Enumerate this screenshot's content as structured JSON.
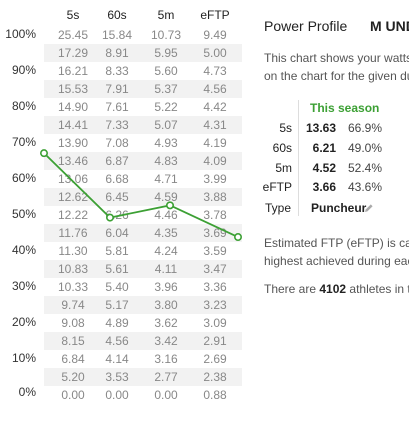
{
  "columns": [
    "5s",
    "60s",
    "5m",
    "eFTP"
  ],
  "percent_labels": [
    "100%",
    "90%",
    "80%",
    "70%",
    "60%",
    "50%",
    "40%",
    "30%",
    "20%",
    "10%",
    "0%"
  ],
  "rows": [
    [
      "25.45",
      "15.84",
      "10.73",
      "9.49"
    ],
    [
      "17.29",
      "8.91",
      "5.95",
      "5.00"
    ],
    [
      "16.21",
      "8.33",
      "5.60",
      "4.73"
    ],
    [
      "15.53",
      "7.91",
      "5.37",
      "4.56"
    ],
    [
      "14.90",
      "7.61",
      "5.22",
      "4.42"
    ],
    [
      "14.41",
      "7.33",
      "5.07",
      "4.31"
    ],
    [
      "13.90",
      "7.08",
      "4.93",
      "4.19"
    ],
    [
      "13.46",
      "6.87",
      "4.83",
      "4.09"
    ],
    [
      "13.06",
      "6.68",
      "4.71",
      "3.99"
    ],
    [
      "12.62",
      "6.45",
      "4.59",
      "3.88"
    ],
    [
      "12.22",
      "6.26",
      "4.46",
      "3.78"
    ],
    [
      "11.76",
      "6.04",
      "4.35",
      "3.69"
    ],
    [
      "11.30",
      "5.81",
      "4.24",
      "3.59"
    ],
    [
      "10.83",
      "5.61",
      "4.11",
      "3.47"
    ],
    [
      "10.33",
      "5.40",
      "3.96",
      "3.36"
    ],
    [
      "9.74",
      "5.17",
      "3.80",
      "3.23"
    ],
    [
      "9.08",
      "4.89",
      "3.62",
      "3.09"
    ],
    [
      "8.15",
      "4.56",
      "3.42",
      "2.91"
    ],
    [
      "6.84",
      "4.14",
      "3.16",
      "2.69"
    ],
    [
      "5.20",
      "3.53",
      "2.77",
      "2.38"
    ],
    [
      "0.00",
      "0.00",
      "0.00",
      "0.88"
    ]
  ],
  "chart_data": {
    "type": "line",
    "categories": [
      "5s",
      "60s",
      "5m",
      "eFTP"
    ],
    "series": [
      {
        "values": [
          66.9,
          49.0,
          52.4,
          43.6
        ],
        "color": "#3ca034"
      }
    ],
    "ylim": [
      0,
      100
    ]
  },
  "panel": {
    "title": "Power Profile",
    "name_fragment": "M UND",
    "desc1_line1": "This chart shows your watts",
    "desc1_line2": "on the chart for the given du",
    "season_header": "This season",
    "stats": [
      {
        "label": "5s",
        "value": "13.63",
        "pct": "66.9%"
      },
      {
        "label": "60s",
        "value": "6.21",
        "pct": "49.0%"
      },
      {
        "label": "5m",
        "value": "4.52",
        "pct": "52.4%"
      },
      {
        "label": "eFTP",
        "value": "3.66",
        "pct": "43.6%"
      }
    ],
    "type_label": "Type",
    "type_value": "Puncheur",
    "edit_icon": "pencil-icon",
    "desc2_line1": "Estimated FTP (eFTP) is ca",
    "desc2_line2": "highest achieved during eac",
    "athletes_pre": "There are ",
    "athletes_count": "4102",
    "athletes_post": " athletes in t"
  }
}
